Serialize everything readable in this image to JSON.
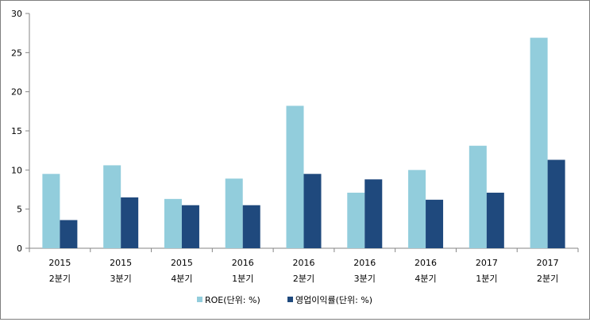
{
  "chart_data": {
    "type": "bar",
    "title": "",
    "xlabel": "",
    "ylabel": "",
    "ylim": [
      0,
      30
    ],
    "yticks": [
      0,
      5,
      10,
      15,
      20,
      25,
      30
    ],
    "grid": false,
    "legend_position": "bottom",
    "categories": [
      {
        "year": "2015",
        "quarter": "2분기"
      },
      {
        "year": "2015",
        "quarter": "3분기"
      },
      {
        "year": "2015",
        "quarter": "4분기"
      },
      {
        "year": "2016",
        "quarter": "1분기"
      },
      {
        "year": "2016",
        "quarter": "2분기"
      },
      {
        "year": "2016",
        "quarter": "3분기"
      },
      {
        "year": "2016",
        "quarter": "4분기"
      },
      {
        "year": "2017",
        "quarter": "1분기"
      },
      {
        "year": "2017",
        "quarter": "2분기"
      }
    ],
    "series": [
      {
        "name": "ROE(단위: %)",
        "color": "#92cddc",
        "values": [
          9.5,
          10.6,
          6.3,
          8.9,
          18.2,
          7.1,
          10.0,
          13.1,
          26.9
        ]
      },
      {
        "name": "영업이익률(단위: %)",
        "color": "#1f497d",
        "values": [
          3.6,
          6.5,
          5.5,
          5.5,
          9.5,
          8.8,
          6.2,
          7.1,
          11.3
        ]
      }
    ]
  }
}
